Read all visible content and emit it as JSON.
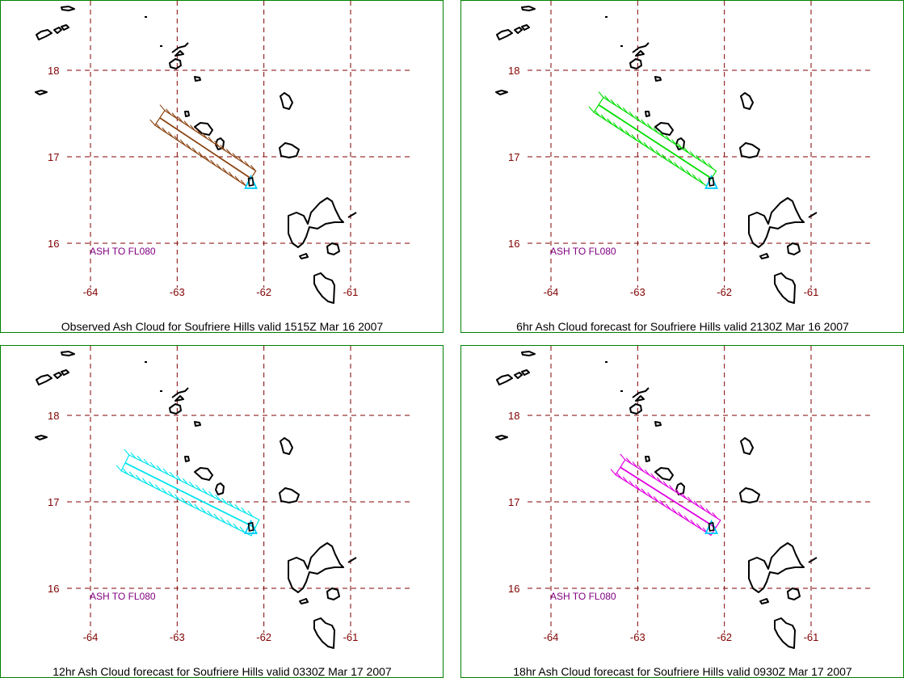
{
  "panels": [
    {
      "caption": "Observed Ash Cloud for Soufriere  Hills valid 1515Z Mar 16 2007",
      "ash_label": "ASH TO FL080",
      "cloud_color": "#8B4513",
      "cloud": {
        "start_lon": -63.2,
        "start_lat": 17.45,
        "end_lon": -62.15,
        "end_lat": 16.75
      }
    },
    {
      "caption": "6hr Ash Cloud forecast for Soufriere  Hills valid 2130Z Mar 16 2007",
      "ash_label": "ASH TO FL080",
      "cloud_color": "#00DD00",
      "cloud": {
        "start_lon": -63.45,
        "start_lat": 17.6,
        "end_lon": -62.15,
        "end_lat": 16.75
      }
    },
    {
      "caption": "12hr Ash Cloud forecast for Soufriere  Hills valid 0330Z Mar 17 2007",
      "ash_label": "ASH TO FL080",
      "cloud_color": "#00E5EE",
      "cloud": {
        "start_lon": -63.6,
        "start_lat": 17.45,
        "end_lon": -62.1,
        "end_lat": 16.7
      }
    },
    {
      "caption": "18hr Ash Cloud forecast for Soufriere  Hills valid 0930Z Mar 17 2007",
      "ash_label": "ASH TO FL080",
      "cloud_color": "#E000E0",
      "cloud": {
        "start_lon": -63.2,
        "start_lat": 17.4,
        "end_lon": -62.1,
        "end_lat": 16.7
      }
    }
  ],
  "lat_ticks": [
    "18",
    "17",
    "16"
  ],
  "lon_ticks": [
    "-64",
    "-63",
    "-62",
    "-61"
  ],
  "volcano_marker_color": "#00CCFF"
}
